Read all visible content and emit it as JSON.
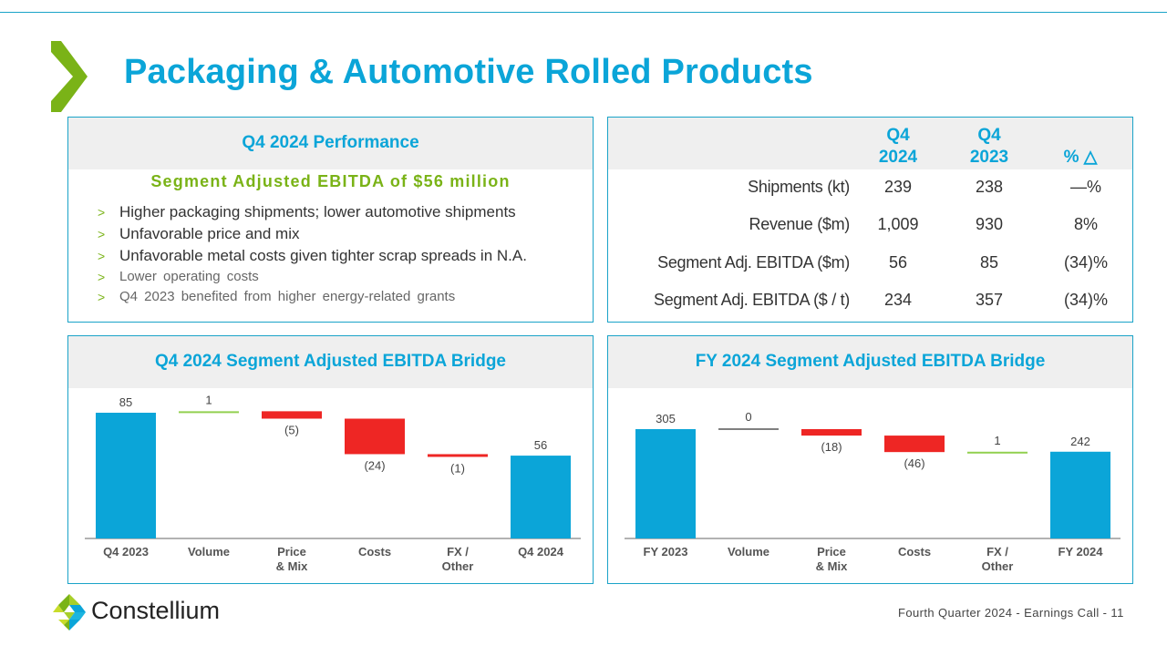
{
  "slide": {
    "title": "Packaging & Automotive Rolled Products",
    "footer": "Fourth Quarter 2024 -  Earnings Call - 11",
    "logo_text": "Constellium",
    "colors": {
      "brand_blue": "#0ba5d8",
      "brand_green": "#7ab317",
      "negative_red": "#ee2624",
      "positive_green": "#92d050",
      "neutral_grey": "#7f7f7f",
      "border": "#1aa3c8"
    }
  },
  "performance": {
    "heading": "Q4 2024 Performance",
    "subheading": "Segment Adjusted EBITDA of $56 million",
    "bullet_marker": ">",
    "bullets": [
      "Higher packaging shipments; lower automotive shipments",
      "Unfavorable price and mix",
      "Unfavorable metal costs given tighter scrap spreads in N.A.",
      "Lower operating costs",
      "Q4 2023 benefited from higher energy-related grants"
    ]
  },
  "kpi_table": {
    "columns": [
      {
        "line1": "Q4",
        "line2": "2024"
      },
      {
        "line1": "Q4",
        "line2": "2023"
      },
      {
        "line1": "",
        "line2": "% △"
      }
    ],
    "rows": [
      {
        "label": "Shipments (kt)",
        "q4_2024": "239",
        "q4_2023": "238",
        "pct": "—%"
      },
      {
        "label": "Revenue ($m)",
        "q4_2024": "1,009",
        "q4_2023": "930",
        "pct": "8%"
      },
      {
        "label": "Segment Adj. EBITDA ($m)",
        "q4_2024": "56",
        "q4_2023": "85",
        "pct": "(34)%"
      },
      {
        "label": "Segment Adj. EBITDA ($ / t)",
        "q4_2024": "234",
        "q4_2023": "357",
        "pct": "(34)%"
      }
    ]
  },
  "chart_data": [
    {
      "type": "bar",
      "subtype": "waterfall",
      "title": "Q4 2024 Segment Adjusted EBITDA Bridge",
      "categories": [
        "Q4 2023",
        "Volume",
        "Price\n& Mix",
        "Costs",
        "FX /\nOther",
        "Q4 2024"
      ],
      "values": [
        85,
        1,
        -5,
        -24,
        -1,
        56
      ],
      "kinds": [
        "total",
        "delta",
        "delta",
        "delta",
        "delta",
        "total"
      ],
      "labels": [
        "85",
        "1",
        "(5)",
        "(24)",
        "(1)",
        "56"
      ],
      "xlabel": "",
      "ylabel": "",
      "ylim": [
        0,
        85
      ],
      "grid": false,
      "legend": "none"
    },
    {
      "type": "bar",
      "subtype": "waterfall",
      "title": "FY 2024 Segment Adjusted EBITDA Bridge",
      "categories": [
        "FY 2023",
        "Volume",
        "Price\n& Mix",
        "Costs",
        "FX /\nOther",
        "FY 2024"
      ],
      "values": [
        305,
        0,
        -18,
        -46,
        1,
        242
      ],
      "kinds": [
        "total",
        "delta",
        "delta",
        "delta",
        "delta",
        "total"
      ],
      "labels": [
        "305",
        "0",
        "(18)",
        "(46)",
        "1",
        "242"
      ],
      "xlabel": "",
      "ylabel": "",
      "ylim": [
        0,
        305
      ],
      "grid": false,
      "legend": "none"
    }
  ]
}
